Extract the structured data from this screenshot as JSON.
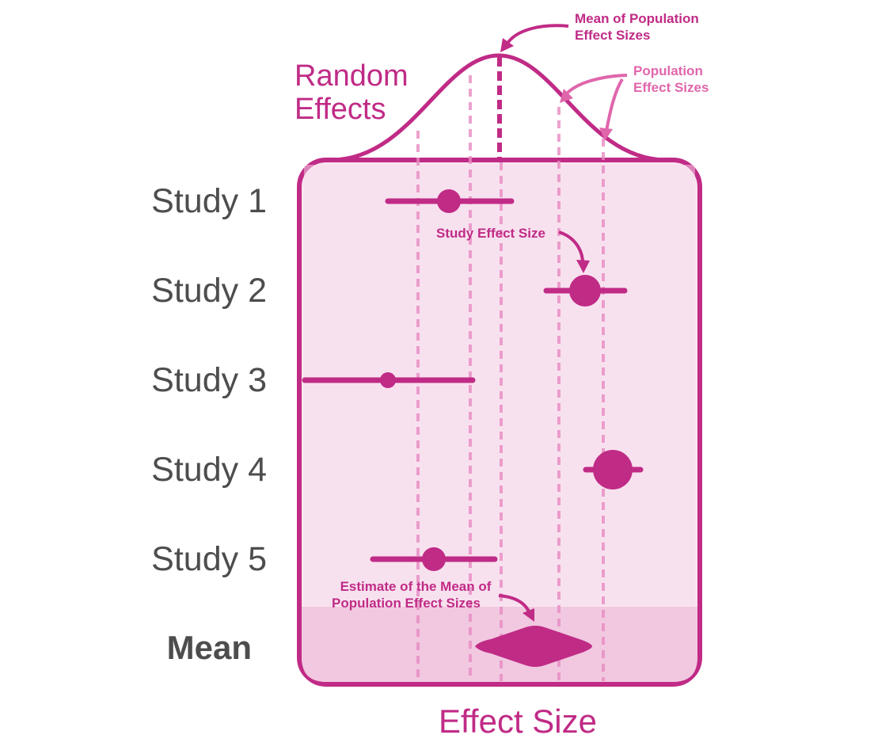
{
  "diagram": {
    "title_lines": [
      "Random",
      "Effects"
    ],
    "x_axis_label": "Effect Size",
    "studies": [
      {
        "label": "Study 1"
      },
      {
        "label": "Study 2"
      },
      {
        "label": "Study 3"
      },
      {
        "label": "Study 4"
      },
      {
        "label": "Study 5"
      }
    ],
    "mean_label": "Mean",
    "annotations": {
      "mean_population_lines": [
        "Mean of Population",
        "Effect Sizes"
      ],
      "population_effect_sizes_lines": [
        "Population",
        "Effect Sizes"
      ],
      "study_effect_size": "Study Effect Size",
      "estimate_mean_lines": [
        "Estimate of the Mean of",
        "Population Effect Sizes"
      ]
    },
    "colors": {
      "accent": "#c02b86",
      "light_accent": "#e066ac",
      "panel_fill": "#f9e4f0",
      "panel_inner": "#f6dbec",
      "mean_band": "#f1c8e0",
      "label_gray": "#4d4d4d"
    }
  }
}
